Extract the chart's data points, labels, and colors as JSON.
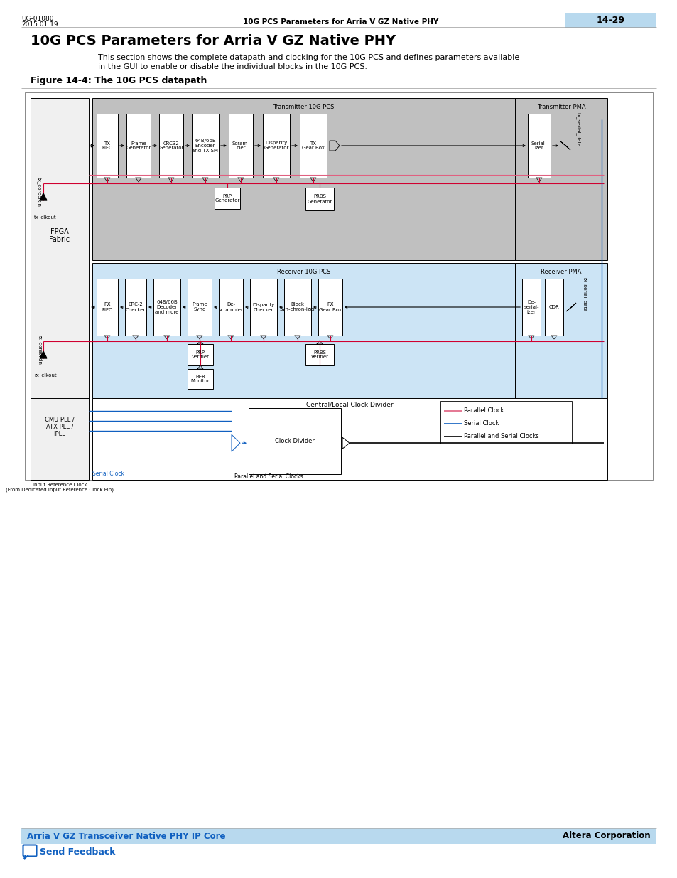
{
  "page_title": "10G PCS Parameters for Arria V GZ Native PHY",
  "header_left_line1": "UG-01080",
  "header_left_line2": "2015.01.19",
  "header_center": "10G PCS Parameters for Arria V GZ Native PHY",
  "header_right": "14-29",
  "header_right_bg": "#b8d9ee",
  "body_text_line1": "This section shows the complete datapath and clocking for the 10G PCS and defines parameters available",
  "body_text_line2": "in the GUI to enable or disable the individual blocks in the 10G PCS.",
  "figure_caption": "Figure 14-4: The 10G PCS datapath",
  "footer_left": "Arria V GZ Transceiver Native PHY IP Core",
  "footer_right": "Altera Corporation",
  "footer_bg": "#b8d9ee",
  "send_feedback": "Send Feedback",
  "background": "#ffffff",
  "tx_pcs_bg": "#c0c0c0",
  "rx_pcs_bg": "#cce4f5",
  "tx_pma_bg": "#c0c0c0",
  "rx_pma_bg": "#cce4f5",
  "fpga_bg": "#f0f0f0",
  "red_clk": "#d00030",
  "blue_clk": "#1060c0",
  "pink_clk": "#e06080"
}
